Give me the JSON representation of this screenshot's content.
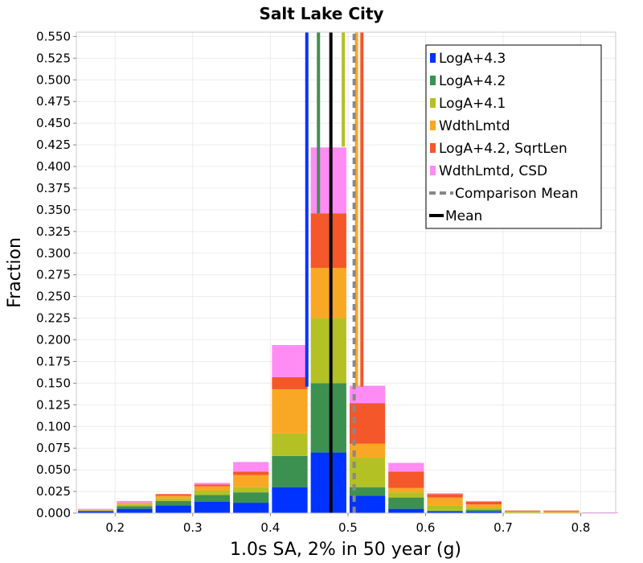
{
  "chart_data": {
    "type": "bar",
    "stacked": true,
    "title": "Salt Lake City",
    "xlabel": "1.0s SA, 2% in 50 year (g)",
    "ylabel": "Fraction",
    "xlim": [
      0.15,
      0.845
    ],
    "ylim": [
      0,
      0.555
    ],
    "bin_width": 0.05,
    "x_ticks": [
      "0.2",
      "0.3",
      "0.4",
      "0.5",
      "0.6",
      "0.7",
      "0.8"
    ],
    "x_tick_values": [
      0.2,
      0.3,
      0.4,
      0.5,
      0.6,
      0.7,
      0.8
    ],
    "y_ticks": [
      "0.000",
      "0.025",
      "0.050",
      "0.075",
      "0.100",
      "0.125",
      "0.150",
      "0.175",
      "0.200",
      "0.225",
      "0.250",
      "0.275",
      "0.300",
      "0.325",
      "0.350",
      "0.375",
      "0.400",
      "0.425",
      "0.450",
      "0.475",
      "0.500",
      "0.525",
      "0.550"
    ],
    "y_tick_values": [
      0,
      0.025,
      0.05,
      0.075,
      0.1,
      0.125,
      0.15,
      0.175,
      0.2,
      0.225,
      0.25,
      0.275,
      0.3,
      0.325,
      0.35,
      0.375,
      0.4,
      0.425,
      0.45,
      0.475,
      0.5,
      0.525,
      0.55
    ],
    "grid": true,
    "legend_position": "top-right",
    "bin_centers": [
      0.175,
      0.225,
      0.275,
      0.325,
      0.375,
      0.425,
      0.475,
      0.525,
      0.575,
      0.625,
      0.675,
      0.725,
      0.775,
      0.825
    ],
    "series": [
      {
        "name": "LogA+4.3",
        "color": "#0033ff",
        "values": [
          0.002,
          0.005,
          0.009,
          0.013,
          0.012,
          0.03,
          0.07,
          0.02,
          0.005,
          0.002,
          0.002,
          0.0,
          0.0,
          0.0
        ]
      },
      {
        "name": "LogA+4.2",
        "color": "#3d9150",
        "values": [
          0.001,
          0.003,
          0.005,
          0.008,
          0.012,
          0.036,
          0.08,
          0.01,
          0.013,
          0.001,
          0.002,
          0.0,
          0.0,
          0.0
        ]
      },
      {
        "name": "LogA+4.1",
        "color": "#b3c124",
        "values": [
          0.0,
          0.002,
          0.003,
          0.005,
          0.006,
          0.026,
          0.075,
          0.034,
          0.006,
          0.006,
          0.002,
          0.001,
          0.0,
          0.0
        ]
      },
      {
        "name": "WdthLmtd",
        "color": "#f9a825",
        "values": [
          0.001,
          0.002,
          0.003,
          0.005,
          0.014,
          0.051,
          0.058,
          0.016,
          0.005,
          0.009,
          0.004,
          0.001,
          0.002,
          0.0
        ]
      },
      {
        "name": "LogA+4.2, SqrtLen",
        "color": "#f4572a",
        "values": [
          0.0,
          0.0,
          0.002,
          0.002,
          0.004,
          0.014,
          0.063,
          0.047,
          0.019,
          0.004,
          0.003,
          0.001,
          0.001,
          0.0
        ]
      },
      {
        "name": "WdthLmtd, CSD",
        "color": "#ff8cf5",
        "values": [
          0.001,
          0.002,
          0.0,
          0.002,
          0.011,
          0.037,
          0.076,
          0.02,
          0.01,
          0.001,
          0.001,
          0.0,
          0.0,
          0.001
        ]
      }
    ],
    "vertical_lines": [
      {
        "name": "LogA+4.3",
        "x": 0.447,
        "color": "#0033ff",
        "dash": false,
        "from": 0.146
      },
      {
        "name": "LogA+4.2",
        "x": 0.462,
        "color": "#3d9150",
        "dash": false,
        "from": 0.346
      },
      {
        "name": "LogA+4.1",
        "x": 0.494,
        "color": "#b3c124",
        "dash": false,
        "from": 0.423
      },
      {
        "name": "WdthLmtd",
        "x": 0.511,
        "color": "#f9a825",
        "dash": false,
        "from": 0.146
      },
      {
        "name": "LogA+4.2, SqrtLen",
        "x": 0.518,
        "color": "#f4572a",
        "dash": false,
        "from": 0.146
      },
      {
        "name": "Comparison Mean",
        "x": 0.508,
        "color": "#888888",
        "dash": true,
        "from": 0
      },
      {
        "name": "Mean",
        "x": 0.478,
        "color": "#000000",
        "dash": false,
        "from": 0
      }
    ],
    "legend": [
      {
        "label": "LogA+4.3",
        "kind": "box",
        "color": "#0033ff"
      },
      {
        "label": "LogA+4.2",
        "kind": "box",
        "color": "#3d9150"
      },
      {
        "label": "LogA+4.1",
        "kind": "box",
        "color": "#b3c124"
      },
      {
        "label": "WdthLmtd",
        "kind": "box",
        "color": "#f9a825"
      },
      {
        "label": "LogA+4.2, SqrtLen",
        "kind": "box",
        "color": "#f4572a"
      },
      {
        "label": "WdthLmtd, CSD",
        "kind": "box",
        "color": "#ff8cf5"
      },
      {
        "label": "Comparison Mean",
        "kind": "dash",
        "color": "#888888"
      },
      {
        "label": "Mean",
        "kind": "line",
        "color": "#000000"
      }
    ]
  }
}
